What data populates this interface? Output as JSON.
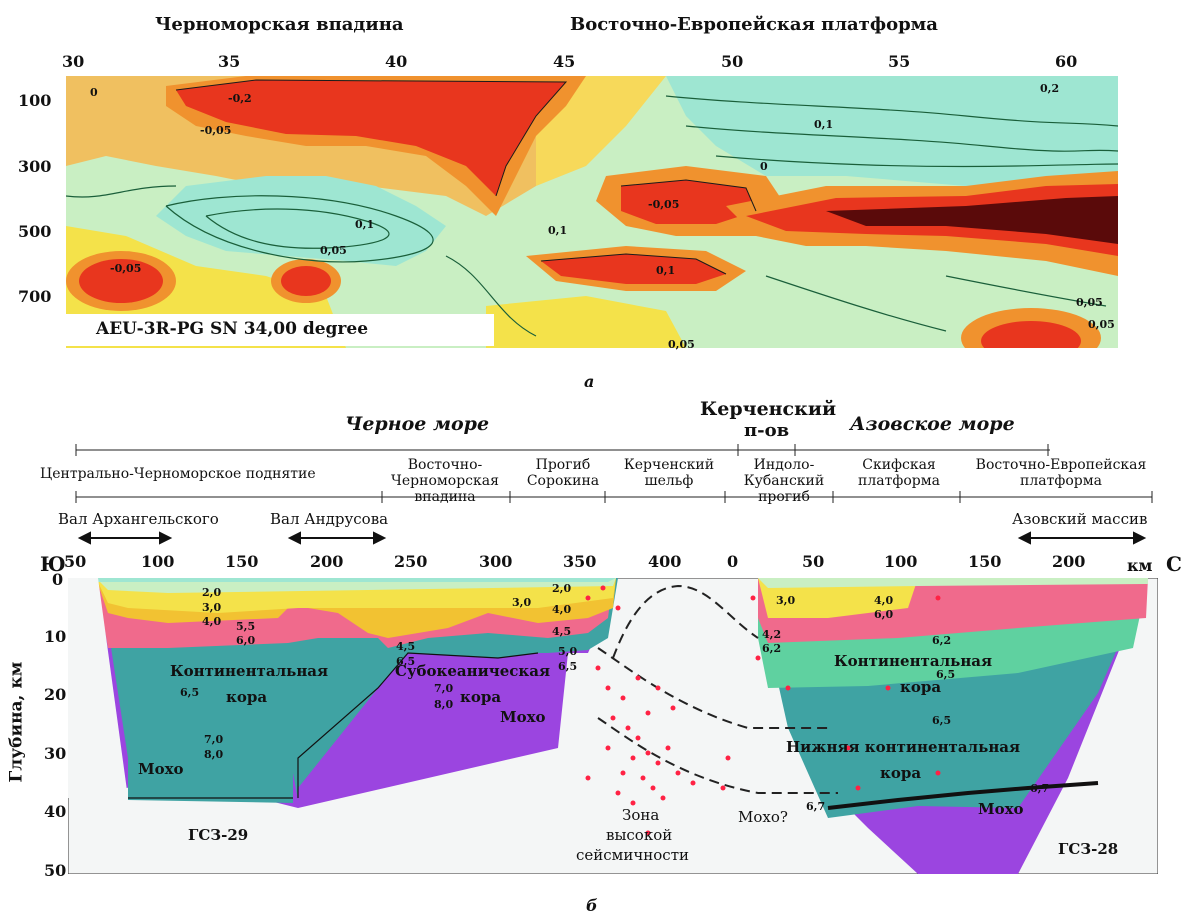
{
  "panel_a": {
    "headers": {
      "left": "Черноморская впадина",
      "right": "Восточно-Европейская платформа"
    },
    "x_ticks": [
      "30",
      "35",
      "40",
      "45",
      "50",
      "55",
      "60"
    ],
    "depth_ticks": [
      "100",
      "300",
      "500",
      "700"
    ],
    "legend_box": "AEU-3R-PG SN 34,00 degree",
    "contour_labels": [
      "0",
      "0,1",
      "-0,05",
      "0,05",
      "0,1",
      "-0,05",
      "0,1",
      "-0,05",
      "0,05",
      "0",
      "0,1",
      "-0,2",
      "0,2",
      "0,05",
      "0,05"
    ],
    "caption": "а"
  },
  "panel_b": {
    "seas": {
      "black_sea": "Черное море",
      "kerch": "Керченский",
      "kerch2": "п-ов",
      "azov_sea": "Азовское море"
    },
    "regions": [
      "Центрально-Черноморское поднятие",
      "Восточно-Черноморская впадина",
      "Прогиб Сорокина",
      "Керченский шельф",
      "Индоло-Кубанский прогиб",
      "Скифская платформа",
      "Восточно-Европейская платформа"
    ],
    "arches": {
      "arkhangelsky": "Вал Архангельского",
      "andrusov": "Вал Андрусова",
      "azov_massif": "Азовский массив"
    },
    "direction": {
      "south": "Ю",
      "north": "С",
      "unit": "км"
    },
    "x_ticks_left": [
      "50",
      "100",
      "150",
      "200",
      "250",
      "300",
      "350",
      "400"
    ],
    "x_ticks_right": [
      "0",
      "50",
      "100",
      "150",
      "200"
    ],
    "y_ticks": [
      "0",
      "10",
      "20",
      "30",
      "40",
      "50"
    ],
    "y_axis_label": "Глубина, км",
    "layer_labels": {
      "cont_crust_left_1": "Континентальная",
      "cont_crust_left_2": "кора",
      "suboceanic_1": "Субокеаническая",
      "suboceanic_2": "кора",
      "moho_left": "Мохо",
      "moho_mid": "Мохо",
      "cont_crust_right_1": "Континентальная",
      "cont_crust_right_2": "кора",
      "lower_crust_1": "Нижняя континентальная",
      "lower_crust_2": "кора",
      "moho_right": "Мохо",
      "moho_q": "Мохо?",
      "gsz29": "ГСЗ-29",
      "gsz28": "ГСЗ-28",
      "seismic_1": "Зона",
      "seismic_2": "высокой",
      "seismic_3": "сейсмичности"
    },
    "velocities": [
      "2,0",
      "3,0",
      "4,0",
      "5,5",
      "6,0",
      "6,5",
      "7,0",
      "8,0",
      "4,5",
      "6,5",
      "7,0",
      "8,0",
      "2,0",
      "3,0",
      "4,0",
      "4,5",
      "5,0",
      "6,5",
      "3,0",
      "4,2",
      "6,2",
      "4,0",
      "6,0",
      "6,2",
      "6,5",
      "6,5",
      "6,7",
      "6,7"
    ],
    "caption": "б"
  },
  "colors": {
    "red": "#e8361e",
    "dark_red": "#5a0a0a",
    "orange": "#f0922e",
    "yellow": "#f4e24a",
    "light_green": "#c9efc3",
    "cyan_green": "#9ee6d2",
    "pink": "#f06a8c",
    "teal": "#3fa3a3",
    "purple": "#9b45e0",
    "sediment_yellow": "#f2c232"
  }
}
